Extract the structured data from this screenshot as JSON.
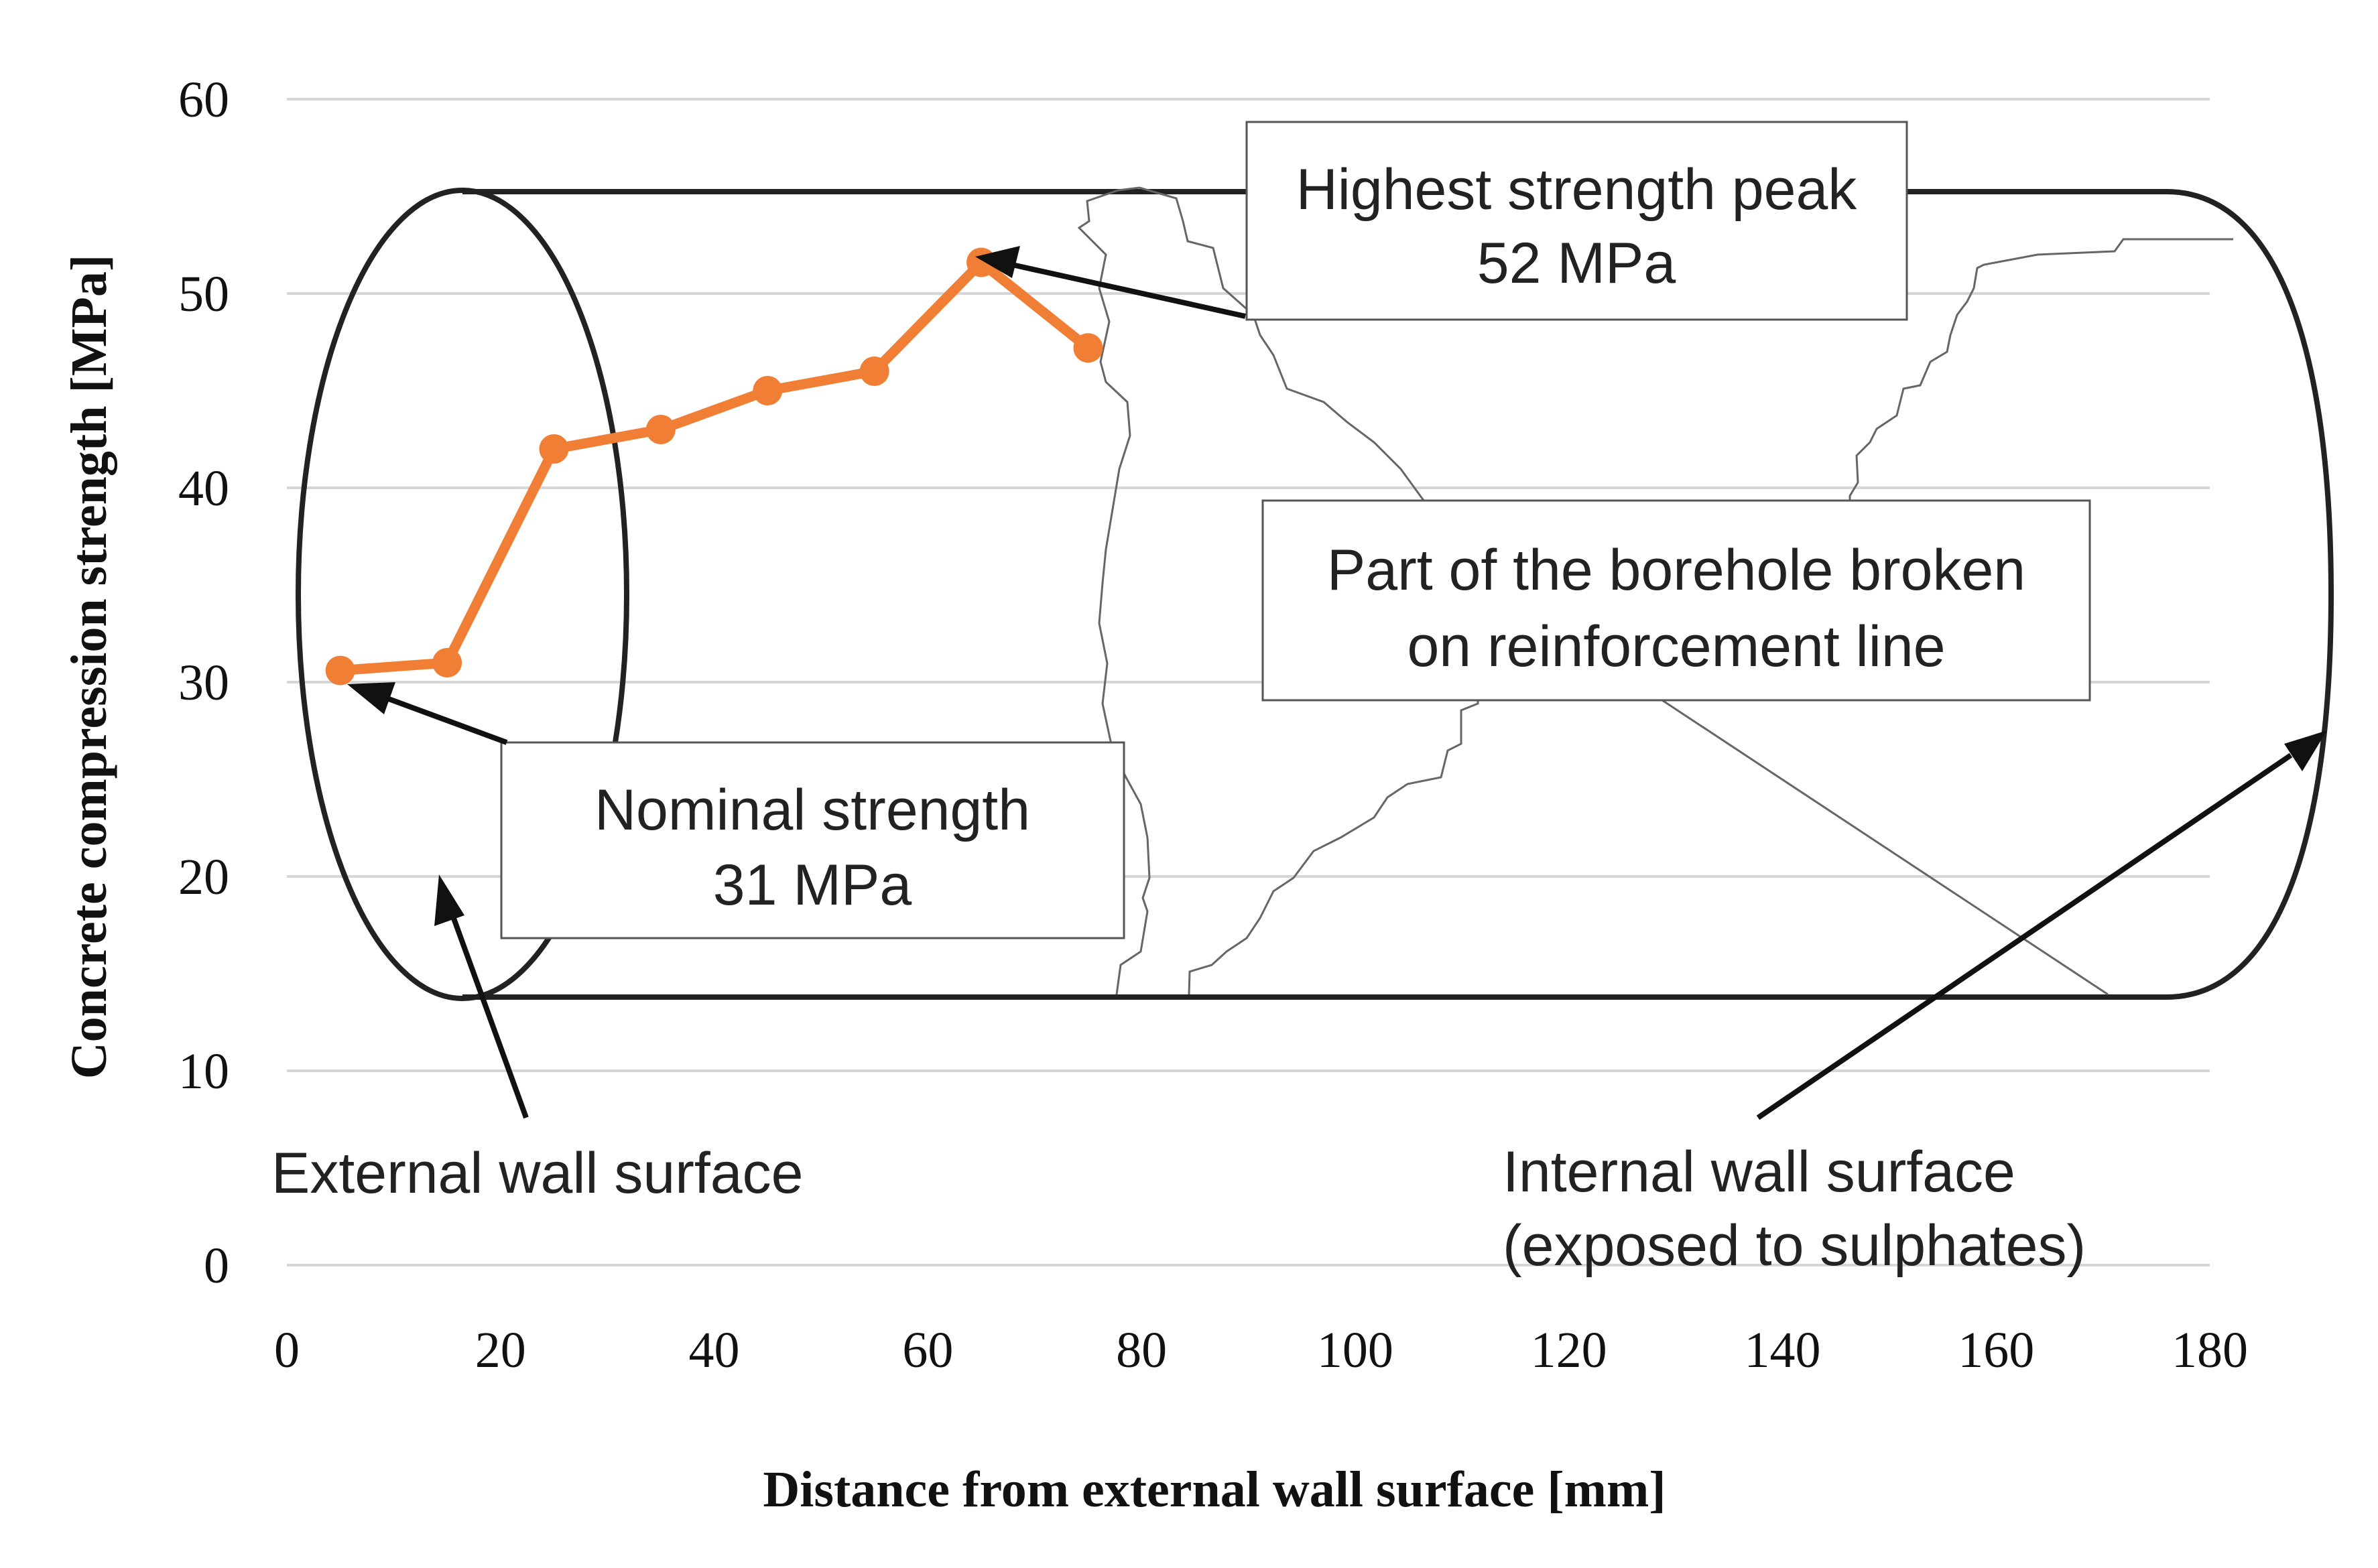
{
  "chart_data": {
    "type": "line",
    "title": "",
    "xlabel": "Distance from external wall surface [mm]",
    "ylabel": "Concrete compression strength [MPa]",
    "xlim": [
      0,
      180
    ],
    "ylim": [
      0,
      60
    ],
    "xticks": [
      0,
      20,
      40,
      60,
      80,
      100,
      120,
      140,
      160,
      180
    ],
    "yticks": [
      0,
      10,
      20,
      30,
      40,
      50,
      60
    ],
    "grid": "horizontal",
    "series": [
      {
        "name": "Concrete compression strength",
        "color": "#f07f35",
        "x": [
          5,
          15,
          25,
          35,
          45,
          55,
          65,
          75
        ],
        "y": [
          30.6,
          31,
          42,
          43,
          45,
          46,
          51.6,
          47.2
        ]
      }
    ],
    "annotations": {
      "peak_line1": "Highest strength peak",
      "peak_line2": "52 MPa",
      "nominal_line1": "Nominal strength",
      "nominal_line2": "31 MPa",
      "broken_line1": "Part of the borehole broken",
      "broken_line2": "on reinforcement line",
      "external": "External wall surface",
      "internal_line1": "Internal wall surface",
      "internal_line2": "(exposed to sulphates)"
    }
  }
}
